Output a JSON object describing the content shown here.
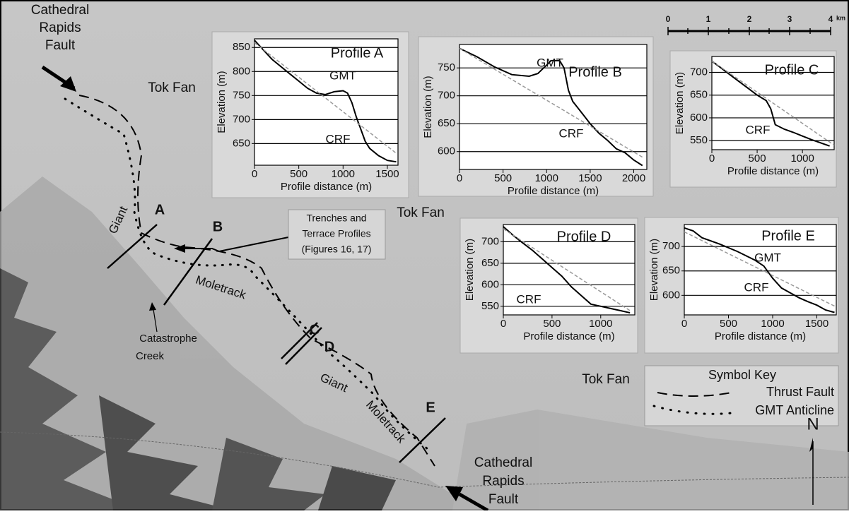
{
  "chart_data": [
    {
      "type": "line",
      "title": "Profile A",
      "x_label": "Profile distance (m)",
      "y_label": "Elevation (m)",
      "xlim": [
        0,
        1620
      ],
      "xticks": [
        0,
        500,
        1000,
        1500
      ],
      "ylim": [
        605,
        868
      ],
      "yticks": [
        650,
        700,
        750,
        800,
        850
      ],
      "annotations": [
        "GMT",
        "CRF"
      ],
      "series": [
        {
          "color": "#000000",
          "line_style": "solid",
          "x": [
            0,
            100,
            200,
            300,
            400,
            500,
            600,
            700,
            800,
            900,
            1000,
            1050,
            1100,
            1150,
            1200,
            1250,
            1300,
            1400,
            1500,
            1600
          ],
          "values": [
            865,
            845,
            825,
            810,
            795,
            780,
            765,
            755,
            752,
            758,
            760,
            755,
            735,
            705,
            680,
            655,
            640,
            625,
            615,
            612
          ]
        },
        {
          "color": "#999999",
          "line_style": "dashed",
          "x": [
            0,
            1600
          ],
          "values": [
            860,
            630
          ]
        }
      ]
    },
    {
      "type": "line",
      "title": "Profile B",
      "x_label": "Profile distance (m)",
      "y_label": "Elevation (m)",
      "xlim": [
        0,
        2150
      ],
      "xticks": [
        0,
        500,
        1000,
        1500,
        2000
      ],
      "ylim": [
        568,
        792
      ],
      "yticks": [
        600,
        650,
        700,
        750
      ],
      "annotations": [
        "GMT",
        "CRF"
      ],
      "series": [
        {
          "color": "#000000",
          "line_style": "solid",
          "x": [
            0,
            200,
            400,
            600,
            800,
            900,
            1000,
            1050,
            1150,
            1200,
            1250,
            1300,
            1400,
            1500,
            1600,
            1700,
            1800,
            1900,
            2000,
            2100
          ],
          "values": [
            785,
            770,
            752,
            738,
            735,
            740,
            755,
            763,
            763,
            750,
            710,
            690,
            670,
            650,
            633,
            620,
            605,
            598,
            585,
            575
          ]
        },
        {
          "color": "#999999",
          "line_style": "dashed",
          "x": [
            0,
            2100
          ],
          "values": [
            785,
            590
          ]
        }
      ]
    },
    {
      "type": "line",
      "title": "Profile C",
      "x_label": "Profile distance (m)",
      "y_label": "Elevation (m)",
      "xlim": [
        0,
        1350
      ],
      "xticks": [
        0,
        500,
        1000
      ],
      "ylim": [
        530,
        735
      ],
      "yticks": [
        550,
        600,
        650,
        700
      ],
      "annotations": [
        "CRF"
      ],
      "series": [
        {
          "color": "#000000",
          "line_style": "solid",
          "x": [
            0,
            100,
            200,
            300,
            400,
            500,
            600,
            650,
            700,
            800,
            900,
            1000,
            1100,
            1200,
            1300
          ],
          "values": [
            725,
            710,
            695,
            680,
            665,
            650,
            638,
            620,
            585,
            575,
            568,
            560,
            552,
            545,
            538
          ]
        },
        {
          "color": "#999999",
          "line_style": "dashed",
          "x": [
            0,
            1350
          ],
          "values": [
            725,
            540
          ]
        }
      ]
    },
    {
      "type": "line",
      "title": "Profile D",
      "x_label": "Profile distance (m)",
      "y_label": "Elevation (m)",
      "xlim": [
        0,
        1350
      ],
      "xticks": [
        0,
        500,
        1000
      ],
      "ylim": [
        530,
        740
      ],
      "yticks": [
        550,
        600,
        650,
        700
      ],
      "annotations": [
        "CRF"
      ],
      "series": [
        {
          "color": "#000000",
          "line_style": "solid",
          "x": [
            0,
            100,
            200,
            300,
            400,
            500,
            600,
            700,
            800,
            900,
            1000,
            1100,
            1200,
            1300
          ],
          "values": [
            735,
            715,
            697,
            680,
            660,
            640,
            620,
            595,
            575,
            555,
            550,
            545,
            540,
            535
          ]
        },
        {
          "color": "#999999",
          "line_style": "dashed",
          "x": [
            0,
            1300
          ],
          "values": [
            730,
            540
          ]
        }
      ]
    },
    {
      "type": "line",
      "title": "Profile E",
      "x_label": "Profile distance (m)",
      "y_label": "Elevation (m)",
      "xlim": [
        0,
        1720
      ],
      "xticks": [
        0,
        500,
        1000,
        1500
      ],
      "ylim": [
        560,
        745
      ],
      "yticks": [
        600,
        650,
        700
      ],
      "annotations": [
        "GMT",
        "CRF"
      ],
      "series": [
        {
          "color": "#000000",
          "line_style": "solid",
          "x": [
            0,
            100,
            200,
            400,
            600,
            800,
            900,
            1000,
            1100,
            1200,
            1300,
            1400,
            1500,
            1600,
            1700
          ],
          "values": [
            738,
            732,
            718,
            705,
            690,
            672,
            660,
            635,
            615,
            605,
            595,
            587,
            580,
            570,
            565
          ]
        },
        {
          "color": "#999999",
          "line_style": "dashed",
          "x": [
            0,
            1700
          ],
          "values": [
            730,
            578
          ]
        }
      ]
    }
  ],
  "map_labels": {
    "fault_north": [
      "Cathedral",
      "Rapids",
      "Fault"
    ],
    "fault_south": [
      "Cathedral",
      "Rapids",
      "Fault"
    ],
    "tok_fan": [
      "Tok Fan",
      "Tok Fan",
      "Tok Fan"
    ],
    "giant": [
      "Giant",
      "Giant"
    ],
    "moletrack": [
      "Moletrack",
      "Moletrack"
    ],
    "profile_lines": [
      "A",
      "B",
      "C",
      "D",
      "E"
    ],
    "catastrophe_creek": [
      "Catastrophe",
      "Creek"
    ],
    "trenches_note": [
      "Trenches and",
      "Terrace Profiles",
      "(Figures 16, 17)"
    ],
    "scale_bar": {
      "ticks": [
        "0",
        "1",
        "2",
        "3",
        "4"
      ],
      "unit": "km"
    },
    "symbol_key": {
      "title": "Symbol Key",
      "items": [
        "Thrust Fault",
        "GMT Anticline"
      ]
    },
    "north": "N"
  }
}
